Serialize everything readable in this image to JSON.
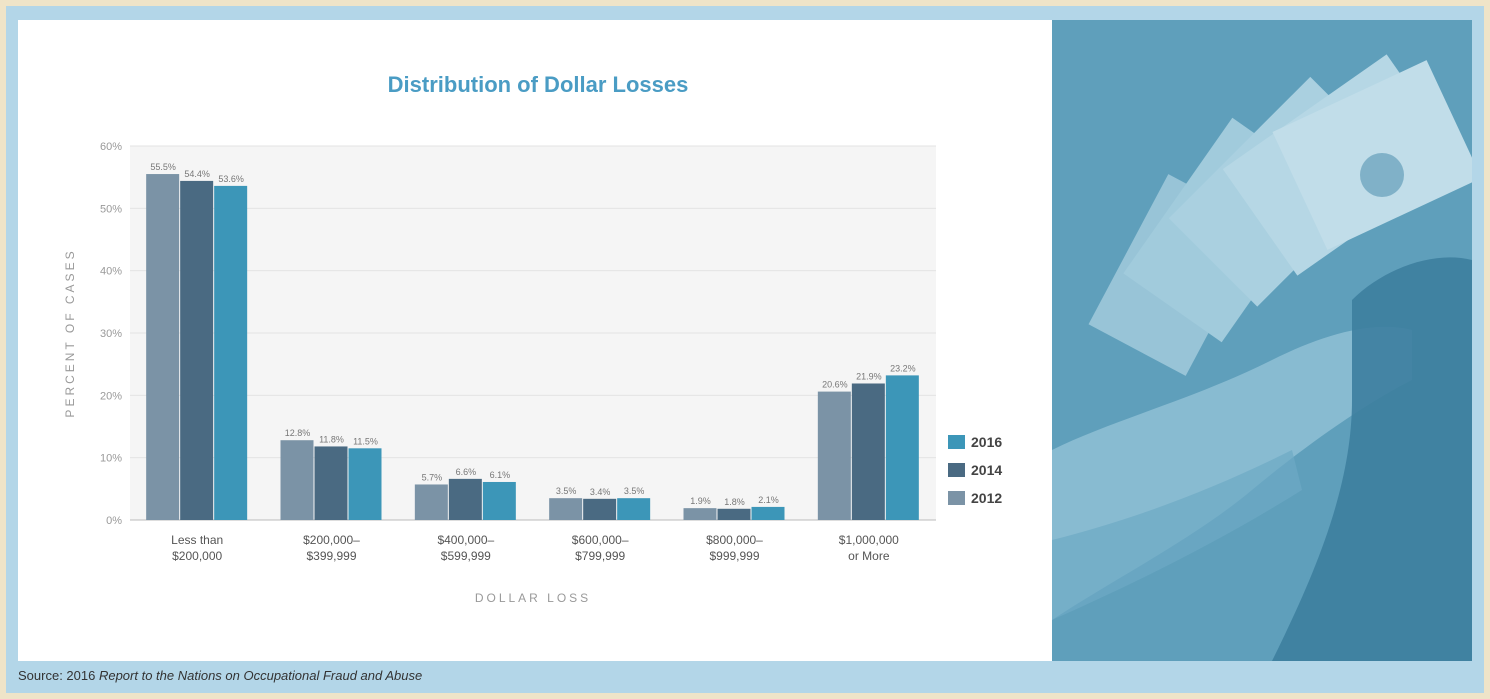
{
  "chart_data": {
    "type": "bar",
    "title": "Distribution of Dollar Losses",
    "xlabel": "DOLLAR LOSS",
    "ylabel": "PERCENT OF CASES",
    "ylim": [
      0,
      60
    ],
    "yticks": [
      "0%",
      "10%",
      "20%",
      "30%",
      "40%",
      "50%",
      "60%"
    ],
    "grid": true,
    "legend_position": "right",
    "categories": [
      [
        "Less than",
        "$200,000"
      ],
      [
        "$200,000–",
        "$399,999"
      ],
      [
        "$400,000–",
        "$599,999"
      ],
      [
        "$600,000–",
        "$799,999"
      ],
      [
        "$800,000–",
        "$999,999"
      ],
      [
        "$1,000,000",
        "or More"
      ]
    ],
    "series": [
      {
        "name": "2012",
        "color": "#7b93a6",
        "values": [
          55.5,
          12.8,
          5.7,
          3.5,
          1.9,
          20.6
        ],
        "labels": [
          "55.5%",
          "12.8%",
          "5.7%",
          "3.5%",
          "1.9%",
          "20.6%"
        ]
      },
      {
        "name": "2014",
        "color": "#4a6a82",
        "values": [
          54.4,
          11.8,
          6.6,
          3.4,
          1.8,
          21.9
        ],
        "labels": [
          "54.4%",
          "11.8%",
          "6.6%",
          "3.4%",
          "1.8%",
          "21.9%"
        ]
      },
      {
        "name": "2016",
        "color": "#3c96b8",
        "values": [
          53.6,
          11.5,
          6.1,
          3.5,
          2.1,
          23.2
        ],
        "labels": [
          "53.6%",
          "11.5%",
          "6.1%",
          "3.5%",
          "2.1%",
          "23.2%"
        ]
      }
    ],
    "legend_order": [
      "2016",
      "2014",
      "2012"
    ]
  },
  "source": {
    "prefix": "Source: 2016 ",
    "title": "Report to the Nations on Occupational Fraud and Abuse"
  },
  "colors": {
    "title": "#4a9cc4",
    "axis_label": "#999999",
    "grid": "#e3e3e3",
    "plot_bg": "#f5f5f5"
  }
}
